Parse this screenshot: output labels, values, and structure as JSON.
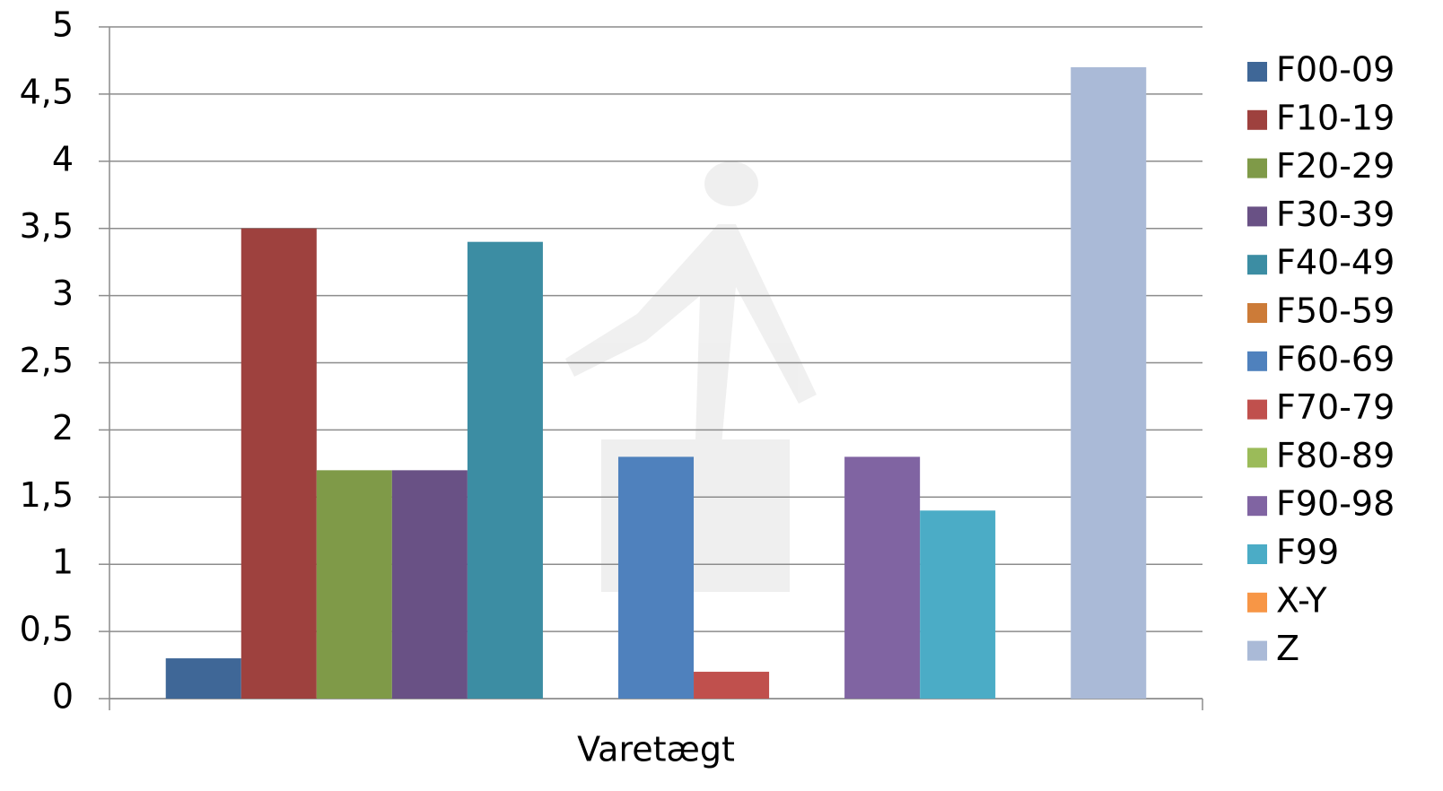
{
  "chart_data": {
    "type": "bar",
    "categories": [
      "Varetægt"
    ],
    "series": [
      {
        "name": "F00-09",
        "color": "#3f6797",
        "values": [
          0.3
        ]
      },
      {
        "name": "F10-19",
        "color": "#9e413e",
        "values": [
          3.5
        ]
      },
      {
        "name": "F20-29",
        "color": "#7f9a48",
        "values": [
          1.7
        ]
      },
      {
        "name": "F30-39",
        "color": "#695185",
        "values": [
          1.7
        ]
      },
      {
        "name": "F40-49",
        "color": "#3c8da3",
        "values": [
          3.4
        ]
      },
      {
        "name": "F50-59",
        "color": "#cc7b38",
        "values": [
          0
        ]
      },
      {
        "name": "F60-69",
        "color": "#4f81bd",
        "values": [
          1.8
        ]
      },
      {
        "name": "F70-79",
        "color": "#c0504d",
        "values": [
          0.2
        ]
      },
      {
        "name": "F80-89",
        "color": "#9bbb59",
        "values": [
          0
        ]
      },
      {
        "name": "F90-98",
        "color": "#8064a2",
        "values": [
          1.8
        ]
      },
      {
        "name": "F99",
        "color": "#4bacc6",
        "values": [
          1.4
        ]
      },
      {
        "name": "X-Y",
        "color": "#f79646",
        "values": [
          0
        ]
      },
      {
        "name": "Z",
        "color": "#aabad7",
        "values": [
          4.7
        ]
      }
    ],
    "ylim": [
      0,
      5
    ],
    "yticks": [
      0,
      {
        "value": 0.5,
        "label": "0,5"
      },
      1,
      {
        "value": 1.5,
        "label": "1,5"
      },
      2,
      {
        "value": 2.5,
        "label": "2,5"
      },
      3,
      {
        "value": 3.5,
        "label": "3,5"
      },
      4,
      {
        "value": 4.5,
        "label": "4,5"
      },
      5
    ],
    "grid": true,
    "legend": "right"
  }
}
